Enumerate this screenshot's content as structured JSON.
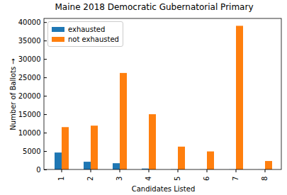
{
  "chart_data": {
    "type": "bar",
    "title": "Maine 2018 Democratic Gubernatorial Primary",
    "x_label": "Candidates Listed",
    "y_label": "Number of Ballots",
    "categories": [
      "1",
      "2",
      "3",
      "4",
      "5",
      "6",
      "7",
      "8"
    ],
    "series": [
      {
        "name": "exhausted",
        "color": "#1f77b4",
        "values": [
          4600,
          2100,
          1700,
          250,
          50,
          30,
          20,
          10
        ]
      },
      {
        "name": "not exhausted",
        "color": "#ff7f0e",
        "values": [
          11500,
          11900,
          26200,
          15000,
          6200,
          4900,
          39000,
          2300
        ]
      }
    ],
    "ylim": [
      0,
      41000
    ],
    "yticks": [
      0,
      5000,
      10000,
      15000,
      20000,
      25000,
      30000,
      35000,
      40000
    ],
    "legend": "upper left",
    "grid": false
  }
}
